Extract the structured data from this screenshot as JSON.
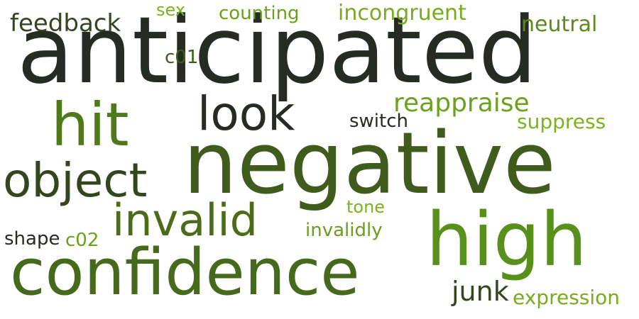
{
  "cloud": {
    "palette": {
      "darkest": "#262b23",
      "dark_olive": "#33461e",
      "olive": "#4c6c1a",
      "green": "#57901b",
      "bright_green": "#76ac1e"
    },
    "words": [
      {
        "id": "anticipated",
        "text": "anticipated",
        "weight": 1.0
      },
      {
        "id": "negative",
        "text": "negative",
        "weight": 0.93
      },
      {
        "id": "high",
        "text": "high",
        "weight": 0.72
      },
      {
        "id": "confidence",
        "text": "confidence",
        "weight": 0.7
      },
      {
        "id": "hit",
        "text": "hit",
        "weight": 0.58
      },
      {
        "id": "look",
        "text": "look",
        "weight": 0.5
      },
      {
        "id": "object",
        "text": "object",
        "weight": 0.48
      },
      {
        "id": "invalid",
        "text": "invalid",
        "weight": 0.46
      },
      {
        "id": "reappraise",
        "text": "reappraise",
        "weight": 0.28
      },
      {
        "id": "feedback",
        "text": "feedback",
        "weight": 0.28
      },
      {
        "id": "junk",
        "text": "junk",
        "weight": 0.28
      },
      {
        "id": "incongruent",
        "text": "incongruent",
        "weight": 0.24
      },
      {
        "id": "neutral",
        "text": "neutral",
        "weight": 0.22
      },
      {
        "id": "suppress",
        "text": "suppress",
        "weight": 0.22
      },
      {
        "id": "expression",
        "text": "expression",
        "weight": 0.22
      },
      {
        "id": "counting",
        "text": "counting",
        "weight": 0.2
      },
      {
        "id": "switch",
        "text": "switch",
        "weight": 0.22
      },
      {
        "id": "invalidly",
        "text": "invalidly",
        "weight": 0.2
      },
      {
        "id": "shape",
        "text": "shape",
        "weight": 0.2
      },
      {
        "id": "c02",
        "text": "c02",
        "weight": 0.2
      },
      {
        "id": "c01",
        "text": "c01",
        "weight": 0.2
      },
      {
        "id": "tone",
        "text": "tone",
        "weight": 0.18
      },
      {
        "id": "sex",
        "text": "sex",
        "weight": 0.18
      }
    ]
  }
}
